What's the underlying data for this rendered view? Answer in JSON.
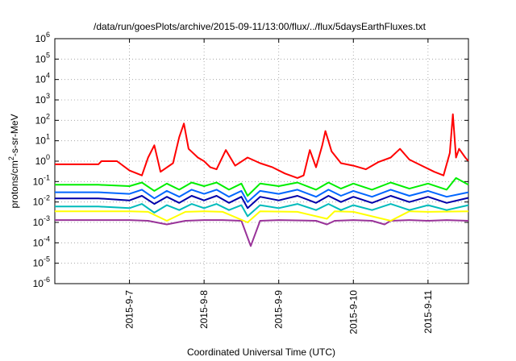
{
  "chart_data": {
    "type": "line",
    "title": "/data/run/goesPlots/archive/2015-09-11/13:00/flux/../flux/5daysEarthFluxes.txt",
    "xlabel": "Coordinated Universal Time (UTC)",
    "ylabel_parts": {
      "pre": "protons/cm",
      "sup": "2",
      "post": "-s-sr-MeV"
    },
    "y_scale": "log",
    "ylim": [
      1e-06,
      1000000.0
    ],
    "y_ticks": [
      {
        "value": 1e-06,
        "base": "10",
        "exp": "-6"
      },
      {
        "value": 1e-05,
        "base": "10",
        "exp": "-5"
      },
      {
        "value": 0.0001,
        "base": "10",
        "exp": "-4"
      },
      {
        "value": 0.001,
        "base": "10",
        "exp": "-3"
      },
      {
        "value": 0.01,
        "base": "10",
        "exp": "-2"
      },
      {
        "value": 0.1,
        "base": "10",
        "exp": "-1"
      },
      {
        "value": 1,
        "base": "10",
        "exp": "0"
      },
      {
        "value": 10,
        "base": "10",
        "exp": "1"
      },
      {
        "value": 100,
        "base": "10",
        "exp": "2"
      },
      {
        "value": 1000,
        "base": "10",
        "exp": "3"
      },
      {
        "value": 10000,
        "base": "10",
        "exp": "4"
      },
      {
        "value": 100000,
        "base": "10",
        "exp": "5"
      },
      {
        "value": 1000000,
        "base": "10",
        "exp": "6"
      }
    ],
    "xlim": [
      "2015-09-06T00:00",
      "2015-09-11T13:00"
    ],
    "x_ticks": [
      {
        "value": "2015-09-07T00:00",
        "label": "2015-9-7"
      },
      {
        "value": "2015-09-08T00:00",
        "label": "2015-9-8"
      },
      {
        "value": "2015-09-09T00:00",
        "label": "2015-9-9"
      },
      {
        "value": "2015-09-10T00:00",
        "label": "2015-9-10"
      },
      {
        "value": "2015-09-11T00:00",
        "label": "2015-9-11"
      }
    ],
    "grid": true,
    "series": [
      {
        "color": "#993399",
        "points": [
          [
            "2015-09-06T00:00",
            0.0013
          ],
          [
            "2015-09-06T14:00",
            0.0013
          ],
          [
            "2015-09-07T00:00",
            0.0013
          ],
          [
            "2015-09-07T06:00",
            0.0012
          ],
          [
            "2015-09-07T12:00",
            0.0008
          ],
          [
            "2015-09-07T18:00",
            0.0012
          ],
          [
            "2015-09-08T00:00",
            0.0013
          ],
          [
            "2015-09-08T06:00",
            0.0013
          ],
          [
            "2015-09-08T12:00",
            0.0012
          ],
          [
            "2015-09-08T15:00",
            7e-05
          ],
          [
            "2015-09-08T18:00",
            0.0012
          ],
          [
            "2015-09-09T00:00",
            0.0013
          ],
          [
            "2015-09-09T12:00",
            0.0012
          ],
          [
            "2015-09-09T15:30",
            0.0008
          ],
          [
            "2015-09-09T18:00",
            0.0012
          ],
          [
            "2015-09-10T00:00",
            0.0013
          ],
          [
            "2015-09-10T06:00",
            0.0012
          ],
          [
            "2015-09-10T10:00",
            0.0008
          ],
          [
            "2015-09-10T12:00",
            0.0012
          ],
          [
            "2015-09-10T18:00",
            0.0013
          ],
          [
            "2015-09-11T00:00",
            0.0012
          ],
          [
            "2015-09-11T06:00",
            0.0013
          ],
          [
            "2015-09-11T13:00",
            0.0012
          ]
        ]
      },
      {
        "color": "#ffff00",
        "points": [
          [
            "2015-09-06T00:00",
            0.0035
          ],
          [
            "2015-09-06T14:00",
            0.0035
          ],
          [
            "2015-09-07T00:00",
            0.0035
          ],
          [
            "2015-09-07T06:00",
            0.0033
          ],
          [
            "2015-09-07T12:00",
            0.0012
          ],
          [
            "2015-09-07T18:00",
            0.0033
          ],
          [
            "2015-09-08T00:00",
            0.0035
          ],
          [
            "2015-09-08T06:00",
            0.0033
          ],
          [
            "2015-09-08T14:00",
            0.001
          ],
          [
            "2015-09-08T18:00",
            0.0035
          ],
          [
            "2015-09-09T06:00",
            0.0033
          ],
          [
            "2015-09-09T15:30",
            0.0015
          ],
          [
            "2015-09-09T18:00",
            0.0035
          ],
          [
            "2015-09-10T00:00",
            0.0033
          ],
          [
            "2015-09-10T12:00",
            0.0012
          ],
          [
            "2015-09-10T18:00",
            0.0035
          ],
          [
            "2015-09-11T00:00",
            0.0033
          ],
          [
            "2015-09-11T13:00",
            0.0035
          ]
        ]
      },
      {
        "color": "#00bbbb",
        "points": [
          [
            "2015-09-06T00:00",
            0.006
          ],
          [
            "2015-09-06T14:00",
            0.006
          ],
          [
            "2015-09-07T00:00",
            0.005
          ],
          [
            "2015-09-07T04:00",
            0.008
          ],
          [
            "2015-09-07T08:00",
            0.003
          ],
          [
            "2015-09-07T12:00",
            0.007
          ],
          [
            "2015-09-07T16:00",
            0.004
          ],
          [
            "2015-09-07T20:00",
            0.008
          ],
          [
            "2015-09-08T00:00",
            0.005
          ],
          [
            "2015-09-08T04:00",
            0.008
          ],
          [
            "2015-09-08T08:00",
            0.004
          ],
          [
            "2015-09-08T12:00",
            0.007
          ],
          [
            "2015-09-08T14:00",
            0.002
          ],
          [
            "2015-09-08T18:00",
            0.007
          ],
          [
            "2015-09-09T00:00",
            0.005
          ],
          [
            "2015-09-09T06:00",
            0.008
          ],
          [
            "2015-09-09T12:00",
            0.004
          ],
          [
            "2015-09-09T16:00",
            0.008
          ],
          [
            "2015-09-09T20:00",
            0.004
          ],
          [
            "2015-09-10T00:00",
            0.007
          ],
          [
            "2015-09-10T06:00",
            0.004
          ],
          [
            "2015-09-10T12:00",
            0.008
          ],
          [
            "2015-09-10T18:00",
            0.004
          ],
          [
            "2015-09-11T00:00",
            0.007
          ],
          [
            "2015-09-11T06:00",
            0.004
          ],
          [
            "2015-09-11T13:00",
            0.007
          ]
        ]
      },
      {
        "color": "#0000aa",
        "points": [
          [
            "2015-09-06T00:00",
            0.015
          ],
          [
            "2015-09-06T14:00",
            0.015
          ],
          [
            "2015-09-07T00:00",
            0.012
          ],
          [
            "2015-09-07T04:00",
            0.02
          ],
          [
            "2015-09-07T08:00",
            0.008
          ],
          [
            "2015-09-07T12:00",
            0.018
          ],
          [
            "2015-09-07T16:00",
            0.009
          ],
          [
            "2015-09-07T20:00",
            0.02
          ],
          [
            "2015-09-08T00:00",
            0.012
          ],
          [
            "2015-09-08T04:00",
            0.02
          ],
          [
            "2015-09-08T08:00",
            0.009
          ],
          [
            "2015-09-08T12:00",
            0.018
          ],
          [
            "2015-09-08T14:00",
            0.005
          ],
          [
            "2015-09-08T18:00",
            0.018
          ],
          [
            "2015-09-09T00:00",
            0.012
          ],
          [
            "2015-09-09T06:00",
            0.02
          ],
          [
            "2015-09-09T12:00",
            0.009
          ],
          [
            "2015-09-09T16:00",
            0.02
          ],
          [
            "2015-09-09T20:00",
            0.01
          ],
          [
            "2015-09-10T00:00",
            0.018
          ],
          [
            "2015-09-10T06:00",
            0.009
          ],
          [
            "2015-09-10T12:00",
            0.02
          ],
          [
            "2015-09-10T18:00",
            0.01
          ],
          [
            "2015-09-11T00:00",
            0.018
          ],
          [
            "2015-09-11T06:00",
            0.009
          ],
          [
            "2015-09-11T13:00",
            0.016
          ]
        ]
      },
      {
        "color": "#0066ff",
        "points": [
          [
            "2015-09-06T00:00",
            0.03
          ],
          [
            "2015-09-06T14:00",
            0.03
          ],
          [
            "2015-09-07T00:00",
            0.025
          ],
          [
            "2015-09-07T04:00",
            0.04
          ],
          [
            "2015-09-07T08:00",
            0.015
          ],
          [
            "2015-09-07T12:00",
            0.035
          ],
          [
            "2015-09-07T16:00",
            0.018
          ],
          [
            "2015-09-07T20:00",
            0.04
          ],
          [
            "2015-09-08T00:00",
            0.025
          ],
          [
            "2015-09-08T04:00",
            0.04
          ],
          [
            "2015-09-08T08:00",
            0.018
          ],
          [
            "2015-09-08T12:00",
            0.035
          ],
          [
            "2015-09-08T14:00",
            0.01
          ],
          [
            "2015-09-08T18:00",
            0.035
          ],
          [
            "2015-09-09T00:00",
            0.025
          ],
          [
            "2015-09-09T06:00",
            0.04
          ],
          [
            "2015-09-09T12:00",
            0.018
          ],
          [
            "2015-09-09T16:00",
            0.04
          ],
          [
            "2015-09-09T20:00",
            0.02
          ],
          [
            "2015-09-10T00:00",
            0.035
          ],
          [
            "2015-09-10T06:00",
            0.018
          ],
          [
            "2015-09-10T12:00",
            0.04
          ],
          [
            "2015-09-10T18:00",
            0.02
          ],
          [
            "2015-09-11T00:00",
            0.035
          ],
          [
            "2015-09-11T06:00",
            0.018
          ],
          [
            "2015-09-11T13:00",
            0.03
          ]
        ]
      },
      {
        "color": "#00ee00",
        "points": [
          [
            "2015-09-06T00:00",
            0.07
          ],
          [
            "2015-09-06T14:00",
            0.07
          ],
          [
            "2015-09-07T00:00",
            0.06
          ],
          [
            "2015-09-07T04:00",
            0.09
          ],
          [
            "2015-09-07T08:00",
            0.035
          ],
          [
            "2015-09-07T12:00",
            0.08
          ],
          [
            "2015-09-07T16:00",
            0.04
          ],
          [
            "2015-09-07T20:00",
            0.09
          ],
          [
            "2015-09-08T00:00",
            0.06
          ],
          [
            "2015-09-08T04:00",
            0.09
          ],
          [
            "2015-09-08T08:00",
            0.04
          ],
          [
            "2015-09-08T12:00",
            0.08
          ],
          [
            "2015-09-08T14:00",
            0.02
          ],
          [
            "2015-09-08T18:00",
            0.08
          ],
          [
            "2015-09-09T00:00",
            0.06
          ],
          [
            "2015-09-09T06:00",
            0.09
          ],
          [
            "2015-09-09T12:00",
            0.04
          ],
          [
            "2015-09-09T16:00",
            0.09
          ],
          [
            "2015-09-09T20:00",
            0.045
          ],
          [
            "2015-09-10T00:00",
            0.08
          ],
          [
            "2015-09-10T06:00",
            0.04
          ],
          [
            "2015-09-10T12:00",
            0.09
          ],
          [
            "2015-09-10T18:00",
            0.045
          ],
          [
            "2015-09-11T00:00",
            0.08
          ],
          [
            "2015-09-11T06:00",
            0.04
          ],
          [
            "2015-09-11T09:00",
            0.15
          ],
          [
            "2015-09-11T13:00",
            0.07
          ]
        ]
      },
      {
        "color": "#ff0000",
        "points": [
          [
            "2015-09-06T00:00",
            0.7
          ],
          [
            "2015-09-06T14:00",
            0.7
          ],
          [
            "2015-09-06T15:00",
            1.0
          ],
          [
            "2015-09-06T20:00",
            1.0
          ],
          [
            "2015-09-07T00:00",
            0.35
          ],
          [
            "2015-09-07T04:00",
            0.2
          ],
          [
            "2015-09-07T06:00",
            1.5
          ],
          [
            "2015-09-07T08:00",
            6.0
          ],
          [
            "2015-09-07T10:00",
            0.3
          ],
          [
            "2015-09-07T14:00",
            0.8
          ],
          [
            "2015-09-07T16:00",
            15
          ],
          [
            "2015-09-07T17:30",
            70
          ],
          [
            "2015-09-07T19:00",
            4
          ],
          [
            "2015-09-07T22:00",
            1.5
          ],
          [
            "2015-09-08T00:00",
            1.0
          ],
          [
            "2015-09-08T02:00",
            0.5
          ],
          [
            "2015-09-08T04:00",
            0.4
          ],
          [
            "2015-09-08T07:00",
            3.5
          ],
          [
            "2015-09-08T10:00",
            0.6
          ],
          [
            "2015-09-08T14:00",
            1.5
          ],
          [
            "2015-09-08T18:00",
            0.8
          ],
          [
            "2015-09-08T22:00",
            0.5
          ],
          [
            "2015-09-09T02:00",
            0.25
          ],
          [
            "2015-09-09T06:00",
            0.15
          ],
          [
            "2015-09-09T08:00",
            0.2
          ],
          [
            "2015-09-09T10:00",
            3.5
          ],
          [
            "2015-09-09T12:00",
            0.5
          ],
          [
            "2015-09-09T14:00",
            6
          ],
          [
            "2015-09-09T15:00",
            30
          ],
          [
            "2015-09-09T17:00",
            3
          ],
          [
            "2015-09-09T20:00",
            0.8
          ],
          [
            "2015-09-10T00:00",
            0.6
          ],
          [
            "2015-09-10T04:00",
            0.4
          ],
          [
            "2015-09-10T08:00",
            0.9
          ],
          [
            "2015-09-10T12:00",
            1.5
          ],
          [
            "2015-09-10T15:00",
            4
          ],
          [
            "2015-09-10T18:00",
            1.2
          ],
          [
            "2015-09-10T22:00",
            0.6
          ],
          [
            "2015-09-11T02:00",
            0.3
          ],
          [
            "2015-09-11T05:00",
            0.2
          ],
          [
            "2015-09-11T07:00",
            2.5
          ],
          [
            "2015-09-11T08:00",
            200
          ],
          [
            "2015-09-11T09:00",
            1.5
          ],
          [
            "2015-09-11T10:00",
            4
          ],
          [
            "2015-09-11T12:00",
            1.5
          ],
          [
            "2015-09-11T13:00",
            1.0
          ]
        ]
      }
    ]
  }
}
